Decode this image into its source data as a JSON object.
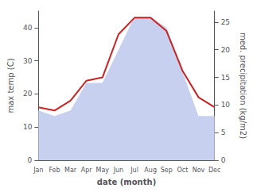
{
  "chart_data": {
    "type": "line",
    "xlabel": "date (month)",
    "ylabel": "max temp (C)",
    "y2label": "med. precipitation (kg/m2)",
    "categories": [
      "Jan",
      "Feb",
      "Mar",
      "Apr",
      "May",
      "Jun",
      "Jul",
      "Aug",
      "Sep",
      "Oct",
      "Nov",
      "Dec"
    ],
    "series": [
      {
        "type": "area",
        "color": "#c8d0f0",
        "axis": "y2",
        "values": [
          9,
          8,
          9,
          14,
          14,
          20,
          26,
          26,
          24,
          16,
          8,
          8
        ]
      },
      {
        "type": "line",
        "color": "#cc2222",
        "axis": "y",
        "values": [
          16,
          15,
          18,
          24,
          25,
          38,
          43,
          43,
          39,
          27,
          19,
          16
        ]
      }
    ],
    "ylim": [
      0,
      45
    ],
    "yticks": [
      0,
      10,
      20,
      30,
      40
    ],
    "y2lim": [
      0,
      27
    ],
    "y2ticks": [
      0,
      5,
      10,
      15,
      20,
      25
    ],
    "grid": false
  }
}
